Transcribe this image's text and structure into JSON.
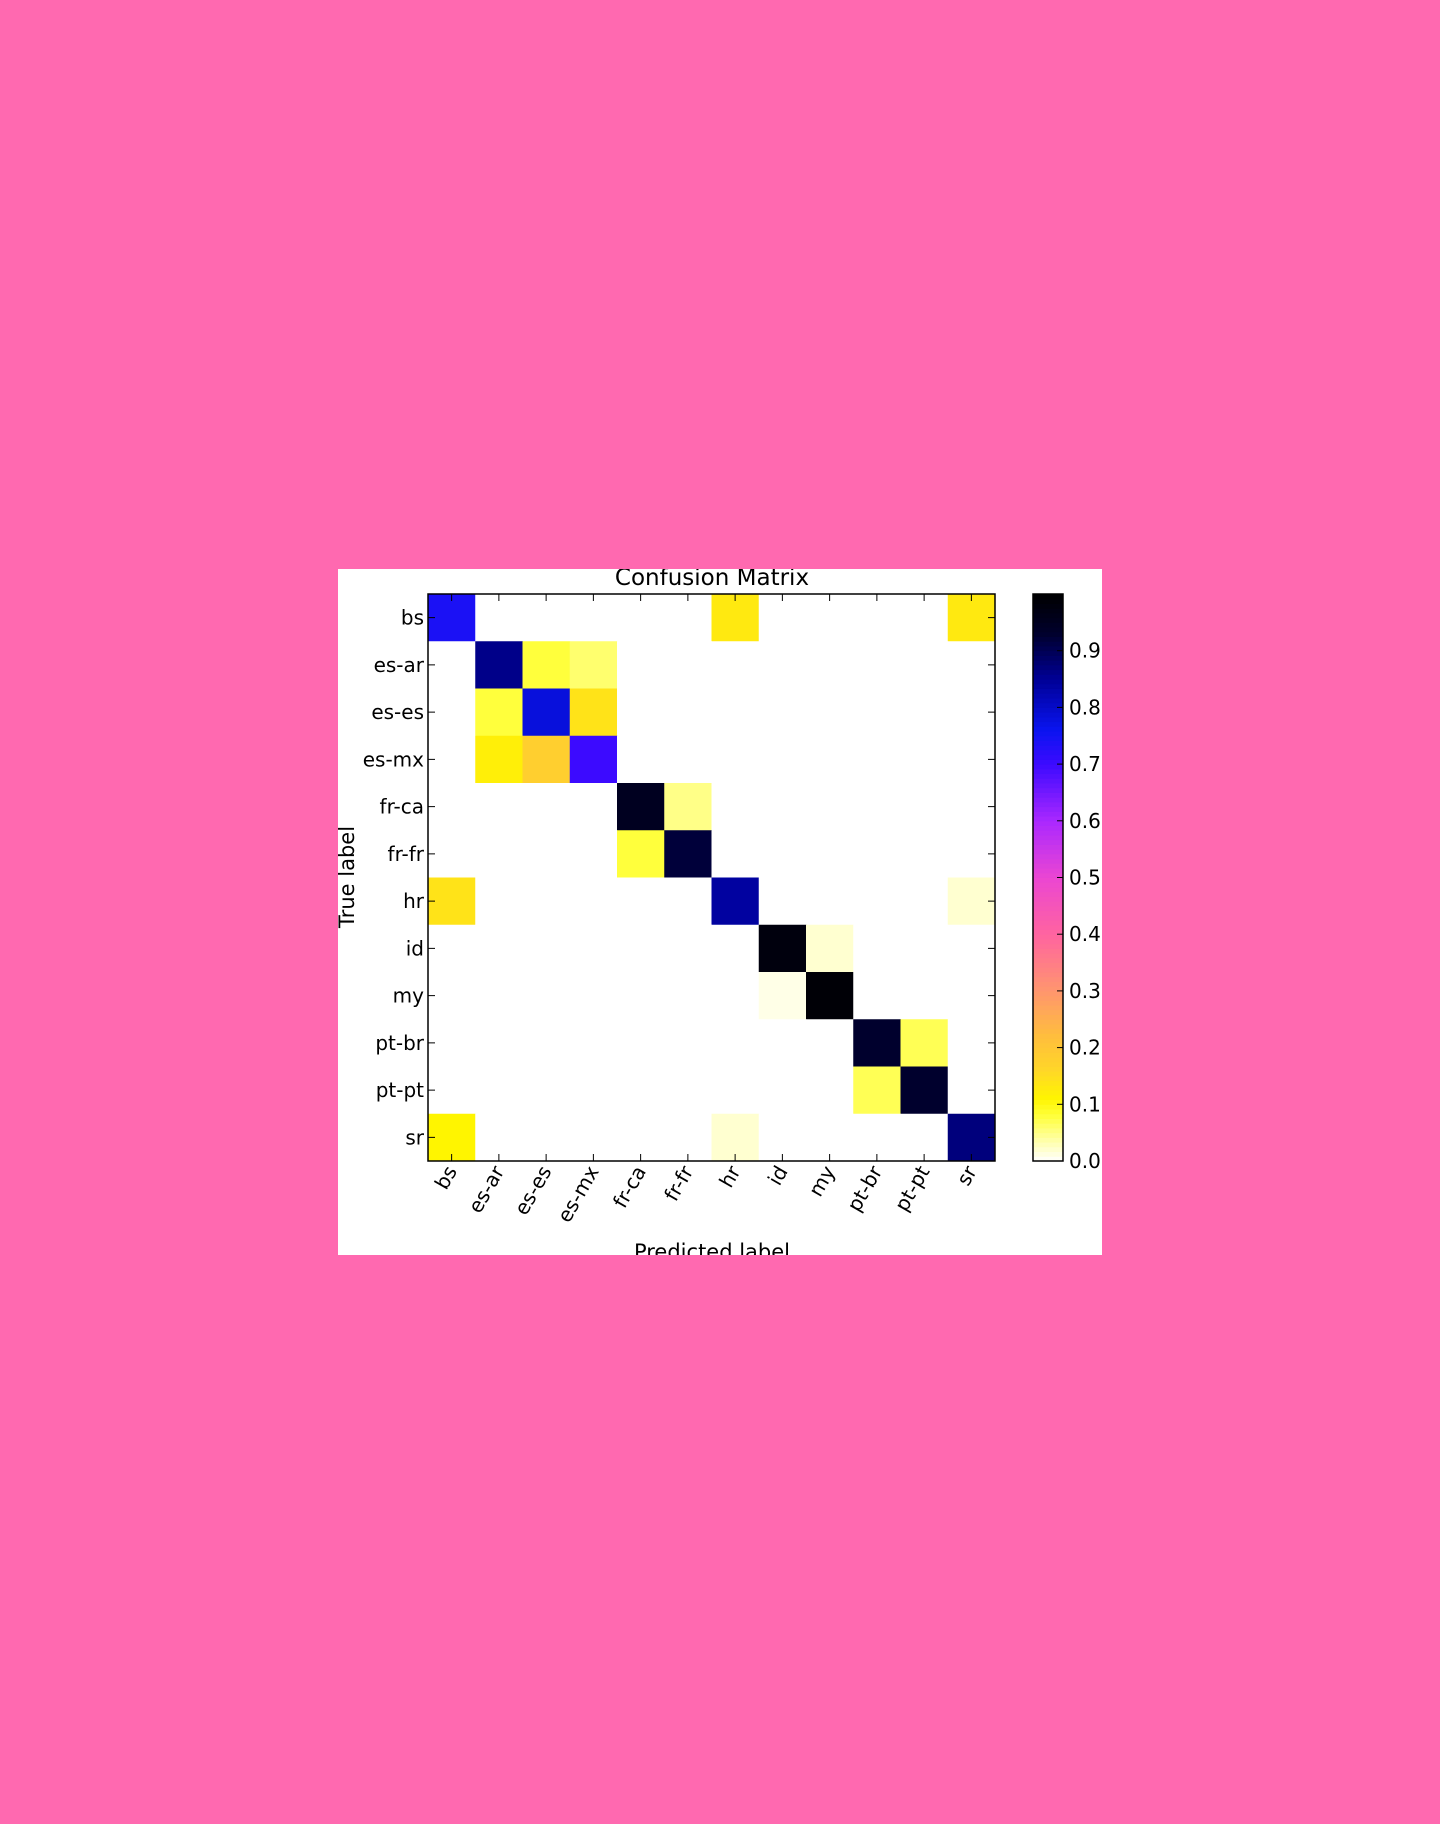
{
  "chart_data": {
    "type": "heatmap",
    "title": "Confusion Matrix",
    "xlabel": "Predicted label",
    "ylabel": "True label",
    "categories": [
      "bs",
      "es-ar",
      "es-es",
      "es-mx",
      "fr-ca",
      "fr-fr",
      "hr",
      "id",
      "my",
      "pt-br",
      "pt-pt",
      "sr"
    ],
    "values": [
      [
        0.74,
        0,
        0,
        0,
        0,
        0,
        0.13,
        0,
        0,
        0,
        0,
        0.13
      ],
      [
        0,
        0.86,
        0.08,
        0.06,
        0,
        0,
        0,
        0,
        0,
        0,
        0,
        0
      ],
      [
        0,
        0.08,
        0.78,
        0.14,
        0,
        0,
        0,
        0,
        0,
        0,
        0,
        0
      ],
      [
        0,
        0.12,
        0.18,
        0.7,
        0,
        0,
        0,
        0,
        0,
        0,
        0,
        0
      ],
      [
        0,
        0,
        0,
        0,
        0.95,
        0.05,
        0,
        0,
        0,
        0,
        0,
        0
      ],
      [
        0,
        0,
        0,
        0,
        0.08,
        0.92,
        0,
        0,
        0,
        0,
        0,
        0
      ],
      [
        0.14,
        0,
        0,
        0,
        0,
        0,
        0.84,
        0,
        0,
        0,
        0,
        0.02
      ],
      [
        0,
        0,
        0,
        0,
        0,
        0,
        0,
        0.98,
        0.02,
        0,
        0,
        0
      ],
      [
        0,
        0,
        0,
        0,
        0,
        0,
        0,
        0.01,
        0.99,
        0,
        0,
        0
      ],
      [
        0,
        0,
        0,
        0,
        0,
        0,
        0,
        0,
        0,
        0.93,
        0.07,
        0
      ],
      [
        0,
        0,
        0,
        0,
        0,
        0,
        0,
        0,
        0,
        0.07,
        0.93,
        0
      ],
      [
        0.11,
        0,
        0,
        0,
        0,
        0,
        0.02,
        0,
        0,
        0,
        0,
        0.87
      ]
    ],
    "colorbar": {
      "range": [
        0,
        1
      ],
      "ticks": [
        "0.0",
        "0.1",
        "0.2",
        "0.3",
        "0.4",
        "0.5",
        "0.6",
        "0.7",
        "0.8",
        "0.9"
      ]
    },
    "grid": false
  }
}
